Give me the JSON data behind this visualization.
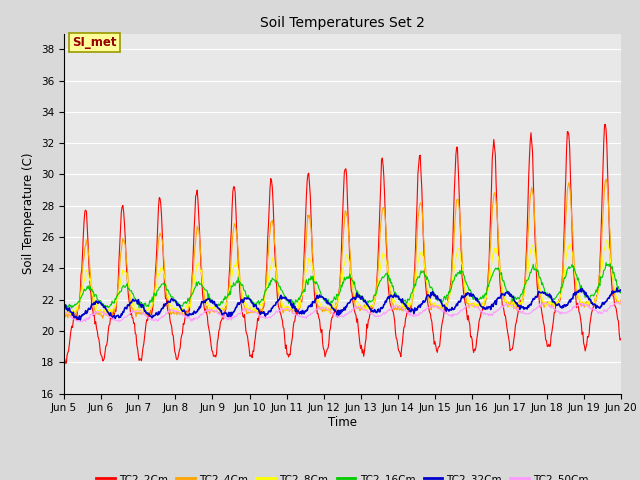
{
  "title": "Soil Temperatures Set 2",
  "xlabel": "Time",
  "ylabel": "Soil Temperature (C)",
  "ylim": [
    16,
    39
  ],
  "yticks": [
    16,
    18,
    20,
    22,
    24,
    26,
    28,
    30,
    32,
    34,
    36,
    38
  ],
  "x_labels": [
    "Jun 5",
    "Jun 6",
    "Jun 7",
    "Jun 8",
    "Jun 9",
    "Jun 10",
    "Jun 11",
    "Jun 12",
    "Jun 13",
    "Jun 14",
    "Jun 15",
    "Jun 16",
    "Jun 17",
    "Jun 18",
    "Jun 19",
    "Jun 20"
  ],
  "annotation_text": "SI_met",
  "annotation_bg": "#ffff99",
  "annotation_fg": "#990000",
  "annotation_edge": "#999900",
  "series_colors": {
    "TC2_2Cm": "#ff0000",
    "TC2_4Cm": "#ffa500",
    "TC2_8Cm": "#ffff00",
    "TC2_16Cm": "#00cc00",
    "TC2_32Cm": "#0000cc",
    "TC2_50Cm": "#ff99ff"
  },
  "fig_bg": "#d9d9d9",
  "plot_bg": "#e8e8e8",
  "grid_color": "#ffffff",
  "n_days": 15,
  "points_per_day": 48
}
